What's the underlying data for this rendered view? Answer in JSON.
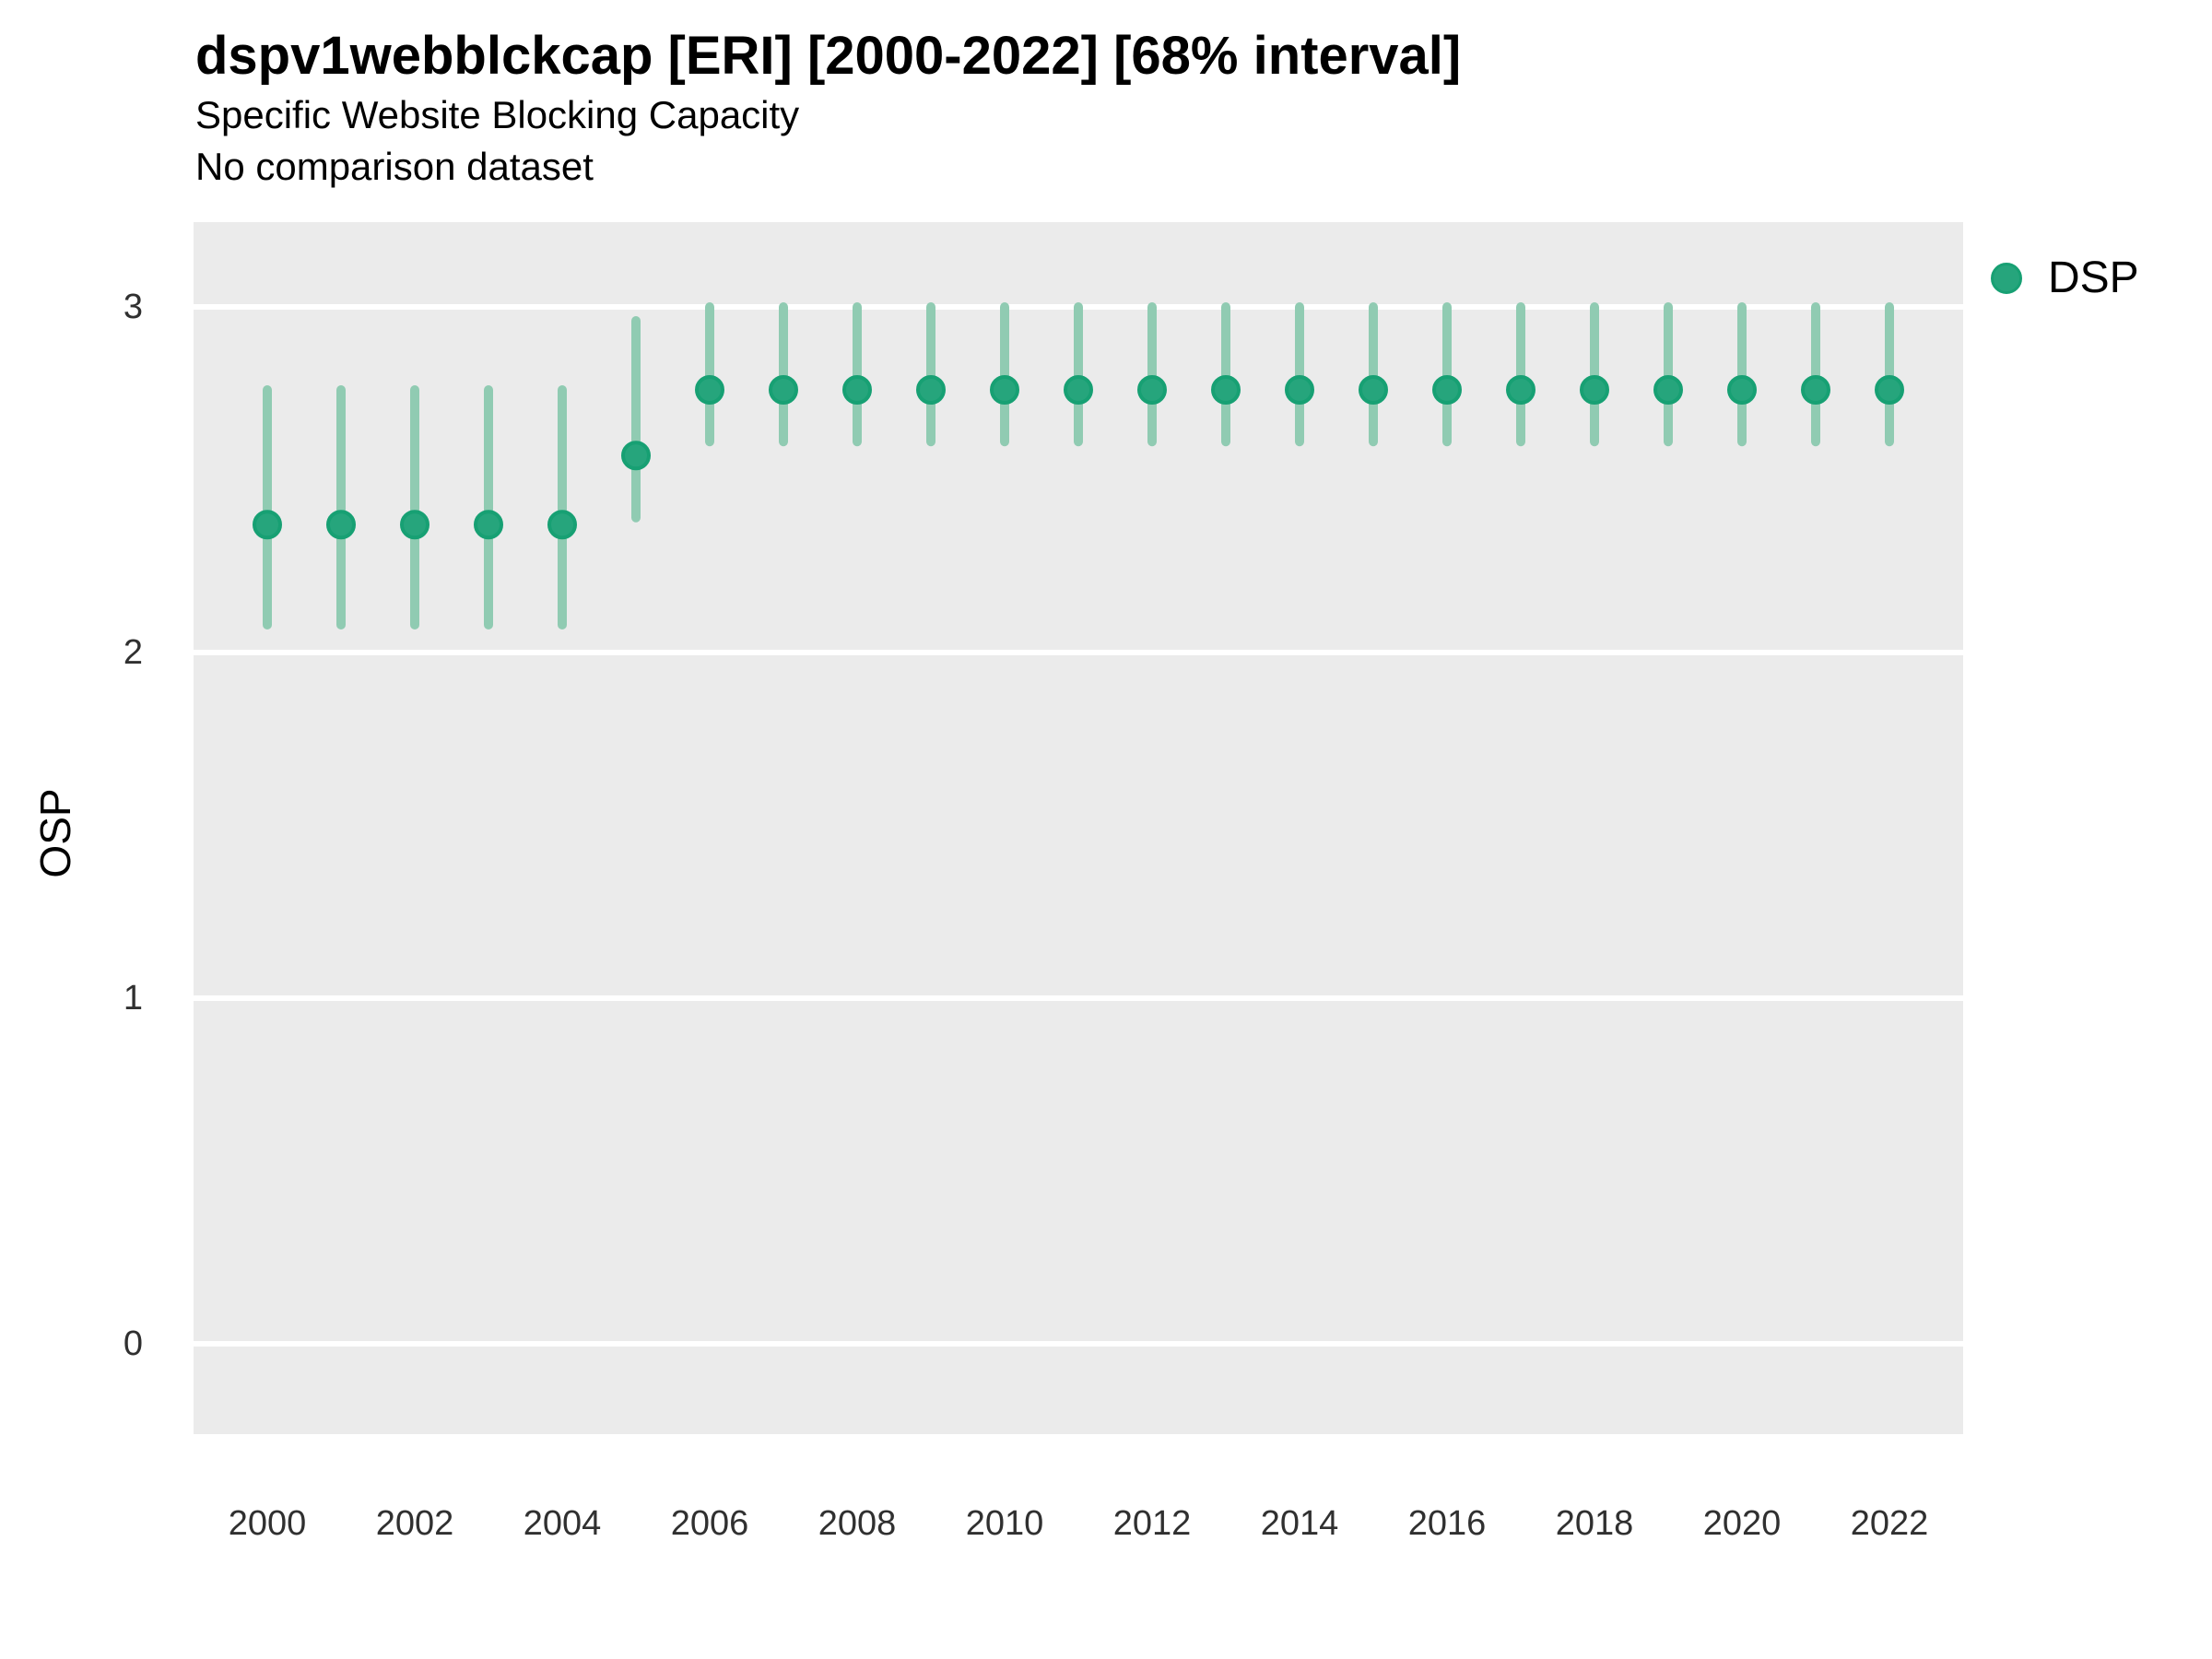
{
  "header": {
    "title": "dspv1webblckcap [ERI] [2000-2022] [68% interval]",
    "subtitle": "Specific Website Blocking Capacity",
    "note": "No comparison dataset"
  },
  "y_axis": {
    "title": "OSP",
    "tick_labels": [
      "3",
      "2",
      "1",
      "0"
    ]
  },
  "x_axis": {
    "tick_labels": [
      "2000",
      "2002",
      "2004",
      "2006",
      "2008",
      "2010",
      "2012",
      "2014",
      "2016",
      "2018",
      "2020",
      "2022"
    ]
  },
  "legend": {
    "items": [
      {
        "label": "DSP",
        "color": "#26a57c"
      }
    ]
  },
  "colors": {
    "point_fill": "#26a57c",
    "point_stroke": "#17a073",
    "interval_bar": "#90cbb2",
    "panel_bg": "#ebebeb",
    "gridline": "#ffffff",
    "tick_text": "#303030"
  },
  "chart_data": {
    "type": "scatter",
    "variant": "pointrange",
    "title": "dspv1webblckcap [ERI] [2000-2022] [68% interval]",
    "subtitle": "Specific Website Blocking Capacity",
    "note": "No comparison dataset",
    "interval": "68%",
    "xlabel": "",
    "ylabel": "OSP",
    "x": [
      2000,
      2001,
      2002,
      2003,
      2004,
      2005,
      2006,
      2007,
      2008,
      2009,
      2010,
      2011,
      2012,
      2013,
      2014,
      2015,
      2016,
      2017,
      2018,
      2019,
      2020,
      2021,
      2022
    ],
    "series": [
      {
        "name": "DSP",
        "values": [
          2.37,
          2.37,
          2.37,
          2.37,
          2.37,
          2.57,
          2.76,
          2.76,
          2.76,
          2.76,
          2.76,
          2.76,
          2.76,
          2.76,
          2.76,
          2.76,
          2.76,
          2.76,
          2.76,
          2.76,
          2.76,
          2.76,
          2.76
        ],
        "ymin": [
          2.08,
          2.08,
          2.08,
          2.08,
          2.08,
          2.39,
          2.61,
          2.61,
          2.61,
          2.61,
          2.61,
          2.61,
          2.61,
          2.61,
          2.61,
          2.61,
          2.61,
          2.61,
          2.61,
          2.61,
          2.61,
          2.61,
          2.61
        ],
        "ymax": [
          2.76,
          2.76,
          2.76,
          2.76,
          2.76,
          2.96,
          3.0,
          3.0,
          3.0,
          3.0,
          3.0,
          3.0,
          3.0,
          3.0,
          3.0,
          3.0,
          3.0,
          3.0,
          3.0,
          3.0,
          3.0,
          3.0,
          3.0
        ]
      }
    ],
    "y_ticks": [
      3,
      2,
      1,
      0
    ],
    "ylim": [
      -0.23,
      3.25
    ],
    "xlim": [
      1999,
      2023
    ],
    "grid": "horizontal-major-only",
    "legend_position": "top-right"
  }
}
